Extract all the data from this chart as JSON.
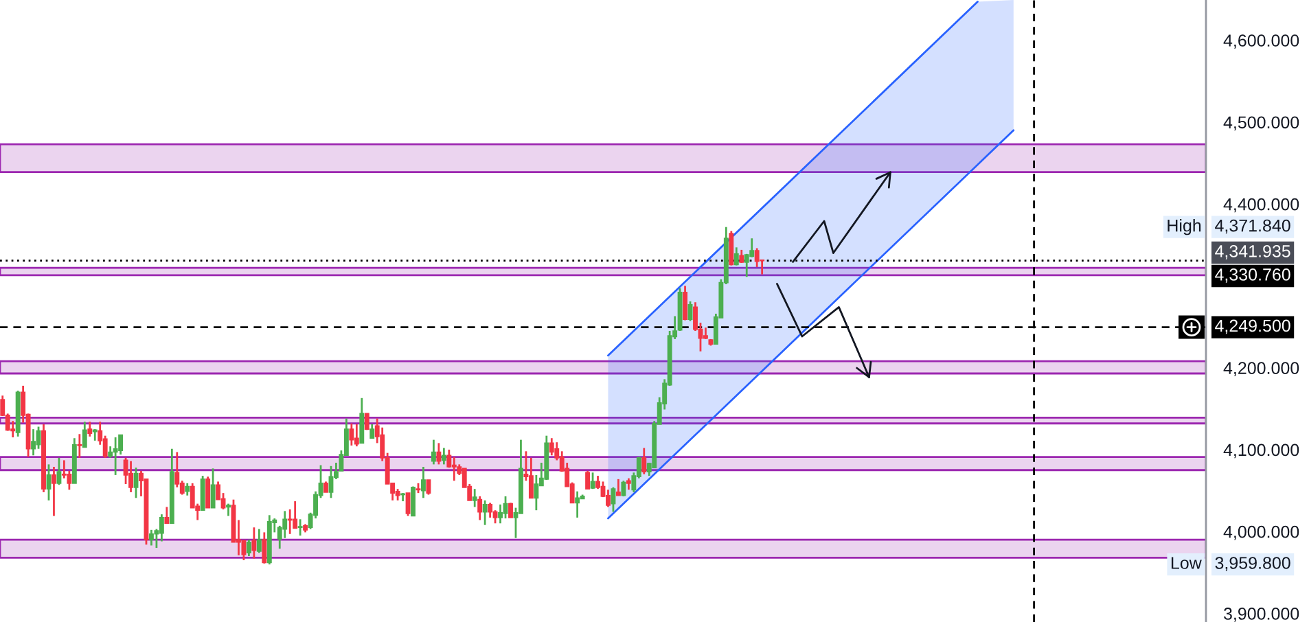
{
  "chart_data": {
    "type": "candlestick",
    "categories": [
      null,
      null,
      null,
      null,
      null,
      null,
      null,
      null,
      null,
      null,
      null,
      null,
      null,
      null,
      null,
      null,
      null,
      null,
      null,
      null,
      null,
      null,
      null,
      null,
      null,
      null,
      null,
      null,
      null,
      null,
      null,
      null,
      null,
      null,
      null,
      null,
      null,
      null,
      null,
      null,
      null,
      null,
      null,
      null,
      null,
      null,
      null,
      null,
      null,
      null,
      null,
      null,
      null,
      null,
      null,
      null,
      null,
      null,
      null,
      null,
      null,
      null,
      null,
      null,
      null,
      null,
      null,
      null,
      null,
      null,
      null,
      null,
      null,
      null,
      null,
      null,
      null,
      null,
      null,
      null,
      null,
      null,
      null,
      null,
      null,
      null,
      null,
      null,
      null,
      null,
      null,
      null,
      null,
      null,
      null,
      null,
      null,
      null,
      null,
      null,
      null,
      null,
      null,
      null,
      null,
      null,
      null,
      null,
      null,
      null,
      null,
      null,
      null,
      null,
      null,
      null,
      null,
      null,
      null,
      null,
      null,
      null,
      null,
      null,
      null,
      null,
      null,
      null,
      null,
      null,
      null,
      null,
      null,
      null,
      null,
      null,
      null,
      null,
      null,
      null,
      null,
      null,
      null,
      null,
      null,
      null,
      null,
      null,
      null,
      null,
      null,
      null,
      null,
      null,
      null,
      null,
      null,
      null,
      null,
      null,
      null,
      null,
      null,
      null,
      null,
      null,
      null,
      null,
      null,
      null,
      null,
      null,
      null,
      null,
      null,
      null,
      null,
      null,
      null,
      null,
      null,
      null,
      null,
      null,
      null,
      null,
      null,
      null,
      null,
      null,
      null,
      null,
      null,
      null,
      null,
      null,
      null,
      null,
      null,
      null,
      null,
      null,
      null,
      null,
      null,
      null,
      null,
      null,
      null,
      null,
      null,
      null,
      null,
      null,
      null,
      null,
      null,
      null,
      null,
      null,
      null,
      null,
      null,
      null,
      null,
      null,
      null,
      null,
      null,
      null,
      null,
      null,
      null,
      null,
      null
    ],
    "ohlc": [
      [
        4161,
        4166,
        4141,
        4142
      ],
      [
        4142,
        4144,
        4123,
        4124
      ],
      [
        4125,
        4135,
        4115,
        4123
      ],
      [
        4121,
        4172,
        4116,
        4170
      ],
      [
        4170,
        4178,
        4133,
        4142
      ],
      [
        4143,
        4144,
        4091,
        4101
      ],
      [
        4101,
        4125,
        4093,
        4110
      ],
      [
        4106,
        4128,
        4101,
        4123
      ],
      [
        4123,
        4131,
        4048,
        4052
      ],
      [
        4052,
        4082,
        4038,
        4069
      ],
      [
        4069,
        4079,
        4019,
        4059
      ],
      [
        4059,
        4090,
        4057,
        4073
      ],
      [
        4070,
        4087,
        4065,
        4069
      ],
      [
        4070,
        4074,
        4051,
        4059
      ],
      [
        4059,
        4114,
        4059,
        4106
      ],
      [
        4106,
        4119,
        4090,
        4105
      ],
      [
        4103,
        4134,
        4103,
        4124
      ],
      [
        4125,
        4134,
        4116,
        4120
      ],
      [
        4122,
        4125,
        4111,
        4124
      ],
      [
        4123,
        4134,
        4106,
        4111
      ],
      [
        4113,
        4117,
        4090,
        4092
      ],
      [
        4092,
        4104,
        4090,
        4097
      ],
      [
        4097,
        4115,
        4069,
        4101
      ],
      [
        4099,
        4118,
        4094,
        4118
      ],
      [
        4087,
        4090,
        4058,
        4069
      ],
      [
        4071,
        4086,
        4048,
        4054
      ],
      [
        4054,
        4078,
        4041,
        4071
      ],
      [
        4071,
        4074,
        4043,
        4062
      ],
      [
        4064,
        4064,
        3984,
        3990
      ],
      [
        3990,
        4002,
        3983,
        3997
      ],
      [
        3997,
        4003,
        3980,
        4001
      ],
      [
        3998,
        4021,
        3988,
        4017
      ],
      [
        4017,
        4030,
        4010,
        4010
      ],
      [
        4010,
        4101,
        4010,
        4073
      ],
      [
        4072,
        4097,
        4054,
        4058
      ],
      [
        4059,
        4062,
        4045,
        4047
      ],
      [
        4049,
        4059,
        4044,
        4055
      ],
      [
        4055,
        4059,
        4029,
        4029
      ],
      [
        4031,
        4034,
        4014,
        4026
      ],
      [
        4026,
        4068,
        4026,
        4064
      ],
      [
        4064,
        4067,
        4029,
        4029
      ],
      [
        4029,
        4077,
        4029,
        4057
      ],
      [
        4057,
        4061,
        4039,
        4039
      ],
      [
        4040,
        4047,
        4027,
        4029
      ],
      [
        4030,
        4034,
        4019,
        4032
      ],
      [
        4032,
        4039,
        3987,
        3987
      ],
      [
        3990,
        4014,
        3971,
        3987
      ],
      [
        3989,
        3989,
        3965,
        3972
      ],
      [
        3974,
        3990,
        3970,
        3987
      ],
      [
        3989,
        4005,
        3967,
        3977
      ],
      [
        3976,
        4003,
        3974,
        3990
      ],
      [
        3990,
        3999,
        3961,
        3962
      ],
      [
        3962,
        4020,
        3959.8,
        4012
      ],
      [
        4011,
        4016,
        3999,
        4014
      ],
      [
        3991,
        4007,
        3979,
        4005
      ],
      [
        4003,
        4025,
        3992,
        4015
      ],
      [
        4015,
        4027,
        3997,
        4014
      ],
      [
        4015,
        4037,
        4004,
        4004
      ],
      [
        4005,
        4015,
        3995,
        4006
      ],
      [
        4007,
        4009,
        3999,
        4002
      ],
      [
        4005,
        4023,
        4003,
        4021
      ],
      [
        4020,
        4049,
        4016,
        4045
      ],
      [
        4044,
        4081,
        4041,
        4059
      ],
      [
        4059,
        4061,
        4048,
        4048
      ],
      [
        4048,
        4080,
        4041,
        4067
      ],
      [
        4066,
        4084,
        4064,
        4073
      ],
      [
        4074,
        4099,
        4074,
        4094
      ],
      [
        4093,
        4138,
        4093,
        4125
      ],
      [
        4125,
        4132,
        4105,
        4112
      ],
      [
        4114,
        4131,
        4104,
        4107
      ],
      [
        4108,
        4163,
        4108,
        4144
      ],
      [
        4144,
        4144,
        4124,
        4125
      ],
      [
        4114,
        4131,
        4114,
        4125
      ],
      [
        4129,
        4138,
        4108,
        4116
      ],
      [
        4118,
        4127,
        4086,
        4090
      ],
      [
        4090,
        4096,
        4058,
        4058
      ],
      [
        4059,
        4059,
        4038,
        4047
      ],
      [
        4049,
        4052,
        4038,
        4044
      ],
      [
        4045,
        4047,
        4037,
        4046
      ],
      [
        4047,
        4047,
        4019,
        4022
      ],
      [
        4019,
        4055,
        4019,
        4054
      ],
      [
        4052,
        4059,
        4047,
        4051
      ],
      [
        4050,
        4079,
        4041,
        4063
      ],
      [
        4063,
        4063,
        4045,
        4047
      ],
      [
        4086,
        4112,
        4082,
        4097
      ],
      [
        4097,
        4108,
        4082,
        4086
      ],
      [
        4087,
        4102,
        4082,
        4093
      ],
      [
        4093,
        4100,
        4078,
        4079
      ],
      [
        4081,
        4091,
        4062,
        4079
      ],
      [
        4079,
        4082,
        4069,
        4071
      ],
      [
        4077,
        4077,
        4054,
        4054
      ],
      [
        4055,
        4058,
        4038,
        4038
      ],
      [
        4038,
        4052,
        4030,
        4042
      ],
      [
        4039,
        4043,
        4014,
        4024
      ],
      [
        4024,
        4038,
        4008,
        4033
      ],
      [
        4033,
        4035,
        4017,
        4024
      ],
      [
        4024,
        4026,
        4010,
        4017
      ],
      [
        4017,
        4033,
        4010,
        4023
      ],
      [
        4022,
        4043,
        4016,
        4034
      ],
      [
        4034,
        4035,
        4017,
        4017
      ],
      [
        4017,
        4029,
        3992,
        4023
      ],
      [
        4022,
        4112,
        4022,
        4077
      ],
      [
        4070,
        4098,
        4062,
        4067
      ],
      [
        4068,
        4090,
        4041,
        4041
      ],
      [
        4041,
        4069,
        4026,
        4058
      ],
      [
        4056,
        4084,
        4056,
        4065
      ],
      [
        4064,
        4117,
        4063,
        4108
      ],
      [
        4108,
        4114,
        4093,
        4097
      ],
      [
        4101,
        4109,
        4087,
        4090
      ],
      [
        4091,
        4098,
        4073,
        4074
      ],
      [
        4077,
        4084,
        4055,
        4055
      ],
      [
        4058,
        4060,
        4035,
        4035
      ],
      [
        4035,
        4049,
        4017,
        4041
      ],
      [
        4040,
        4045,
        4040,
        4043
      ],
      [
        4072,
        4074,
        4052,
        4052
      ],
      [
        4053,
        4072,
        4052,
        4061
      ],
      [
        4061,
        4068,
        4052,
        4054
      ],
      [
        4055,
        4061,
        4042,
        4043
      ],
      [
        4044,
        4051,
        4030,
        4032
      ],
      [
        4034,
        4054,
        4024,
        4052
      ],
      [
        4048,
        4064,
        4044,
        4044
      ],
      [
        4044,
        4062,
        4043,
        4060
      ],
      [
        4062,
        4065,
        4051,
        4059
      ],
      [
        4051,
        4072,
        4048,
        4068
      ],
      [
        4067,
        4091,
        4065,
        4090
      ],
      [
        4090,
        4102,
        4070,
        4073
      ],
      [
        4073,
        4084,
        4068,
        4083
      ],
      [
        4078,
        4135,
        4078,
        4132
      ],
      [
        4131,
        4164,
        4131,
        4157
      ],
      [
        4156,
        4186,
        4149,
        4181
      ],
      [
        4179,
        4245,
        4178,
        4239
      ],
      [
        4238,
        4263,
        4235,
        4245
      ],
      [
        4246,
        4297,
        4245,
        4292
      ],
      [
        4292,
        4300,
        4258,
        4259
      ],
      [
        4259,
        4281,
        4257,
        4277
      ],
      [
        4274,
        4280,
        4245,
        4247
      ],
      [
        4247,
        4255,
        4220,
        4236
      ],
      [
        4239,
        4249,
        4235,
        4236
      ],
      [
        4234,
        4235,
        4227,
        4229
      ],
      [
        4229,
        4266,
        4229,
        4262
      ],
      [
        4261,
        4308,
        4261,
        4304
      ],
      [
        4304,
        4371.84,
        4302,
        4358
      ],
      [
        4364,
        4367,
        4325,
        4326
      ],
      [
        4326,
        4347,
        4325,
        4339
      ],
      [
        4337,
        4344,
        4328,
        4329
      ],
      [
        4329,
        4339,
        4311,
        4338
      ],
      [
        4336,
        4358,
        4335,
        4343
      ],
      [
        4343,
        4346,
        4323,
        4330
      ],
      [
        4331.5,
        4332,
        4314,
        4330.76
      ],
      null,
      null,
      null,
      null,
      null,
      null,
      null,
      null,
      null,
      null,
      null,
      null,
      null,
      null,
      null,
      null,
      null,
      null,
      null,
      null,
      null,
      null,
      null,
      null,
      null,
      null,
      null,
      null,
      null,
      null,
      null,
      null,
      null,
      null,
      null,
      null,
      null,
      null,
      null,
      null,
      null,
      null,
      null,
      null,
      null,
      null,
      null,
      null,
      null,
      null,
      null,
      null,
      null,
      null,
      null,
      null,
      null,
      null,
      null,
      null,
      null,
      null,
      null,
      null,
      null,
      null,
      null,
      null,
      null,
      null,
      null,
      null,
      null,
      null,
      null,
      null,
      null,
      null,
      null,
      null,
      null,
      null,
      null,
      null,
      null,
      null
    ],
    "colors": [
      "#f23645",
      "#f23645",
      "#f23645",
      "#4caf50",
      "#f23645",
      "#f23645",
      "#4caf50",
      "#4caf50",
      "#f23645",
      "#4caf50",
      "#f23645",
      "#4caf50",
      "#f23645",
      "#f23645",
      "#4caf50",
      "#f23645",
      "#4caf50",
      "#f23645",
      "#4caf50",
      "#f23645",
      "#f23645",
      "#4caf50",
      "#4caf50",
      "#4caf50",
      "#f23645",
      "#f23645",
      "#4caf50",
      "#f23645",
      "#f23645",
      "#4caf50",
      "#4caf50",
      "#4caf50",
      "#f23645",
      "#4caf50",
      "#f23645",
      "#f23645",
      "#4caf50",
      "#f23645",
      "#f23645",
      "#4caf50",
      "#f23645",
      "#4caf50",
      "#f23645",
      "#f23645",
      "#4caf50",
      "#f23645",
      "#f23645",
      "#f23645",
      "#4caf50",
      "#f23645",
      "#4caf50",
      "#f23645",
      "#4caf50",
      "#4caf50",
      "#4caf50",
      "#4caf50",
      "#f23645",
      "#f23645",
      "#4caf50",
      "#f23645",
      "#4caf50",
      "#4caf50",
      "#4caf50",
      "#f23645",
      "#4caf50",
      "#4caf50",
      "#4caf50",
      "#4caf50",
      "#f23645",
      "#f23645",
      "#4caf50",
      "#f23645",
      "#4caf50",
      "#f23645",
      "#f23645",
      "#f23645",
      "#f23645",
      "#f23645",
      "#4caf50",
      "#f23645",
      "#4caf50",
      "#f23645",
      "#4caf50",
      "#f23645",
      "#4caf50",
      "#f23645",
      "#4caf50",
      "#f23645",
      "#f23645",
      "#f23645",
      "#f23645",
      "#f23645",
      "#4caf50",
      "#f23645",
      "#4caf50",
      "#f23645",
      "#f23645",
      "#4caf50",
      "#4caf50",
      "#f23645",
      "#4caf50",
      "#4caf50",
      "#f23645",
      "#f23645",
      "#4caf50",
      "#4caf50",
      "#4caf50",
      "#f23645",
      "#f23645",
      "#f23645",
      "#f23645",
      "#f23645",
      "#4caf50",
      "#4caf50",
      "#f23645",
      "#4caf50",
      "#f23645",
      "#f23645",
      "#f23645",
      "#4caf50",
      "#f23645",
      "#4caf50",
      "#f23645",
      "#4caf50",
      "#4caf50",
      "#f23645",
      "#4caf50",
      "#4caf50",
      "#4caf50",
      "#4caf50",
      "#4caf50",
      "#4caf50",
      "#4caf50",
      "#f23645",
      "#4caf50",
      "#f23645",
      "#f23645",
      "#f23645",
      "#f23645",
      "#4caf50",
      "#4caf50",
      "#4caf50",
      "#f23645",
      "#4caf50",
      "#f23645",
      "#4caf50",
      "#4caf50",
      "#f23645",
      "#f23645",
      null,
      null,
      null,
      null,
      null,
      null,
      null,
      null,
      null,
      null,
      null,
      null,
      null,
      null,
      null,
      null,
      null,
      null,
      null,
      null,
      null,
      null,
      null,
      null,
      null,
      null,
      null,
      null,
      null,
      null,
      null,
      null,
      null,
      null,
      null,
      null,
      null,
      null,
      null,
      null,
      null,
      null,
      null,
      null,
      null,
      null,
      null,
      null,
      null,
      null,
      null,
      null,
      null,
      null,
      null,
      null,
      null,
      null,
      null,
      null,
      null,
      null,
      null,
      null,
      null,
      null,
      null,
      null,
      null,
      null,
      null,
      null,
      null,
      null,
      null,
      null,
      null,
      null,
      null,
      null,
      null,
      null,
      null,
      null,
      null,
      null
    ],
    "series": [
      {
        "type": "line",
        "color": "#2962ff",
        "values": [
          null,
          null,
          null,
          null,
          null,
          null,
          null,
          null,
          null,
          null,
          null,
          null,
          null,
          null,
          null,
          null,
          null,
          null,
          null,
          null,
          null,
          null,
          null,
          null,
          null,
          null,
          null,
          null,
          null,
          null,
          null,
          null,
          null,
          null,
          null,
          null,
          null,
          null,
          null,
          null,
          null,
          null,
          null,
          null,
          null,
          null,
          null,
          null,
          null,
          null,
          null,
          null,
          null,
          null,
          null,
          null,
          null,
          null,
          null,
          null,
          null,
          null,
          null,
          null,
          null,
          null,
          null,
          null,
          null,
          null,
          null,
          null,
          null,
          null,
          null,
          null,
          null,
          null,
          null,
          null,
          null,
          null,
          null,
          null,
          null,
          null,
          null,
          null,
          null,
          null,
          null,
          null,
          null,
          null,
          null,
          null,
          null,
          null,
          null,
          null,
          null,
          null,
          null,
          null,
          null,
          null,
          null,
          null,
          null,
          null,
          null,
          null,
          null,
          null,
          null,
          null,
          null,
          null,
          4215,
          null,
          null,
          null,
          null,
          null,
          null,
          null,
          null,
          null,
          null,
          null,
          null,
          null,
          null,
          null,
          null,
          null,
          null,
          null,
          null,
          null,
          null,
          null,
          null,
          null,
          null,
          null,
          null,
          null,
          null,
          null,
          null,
          null,
          null,
          null,
          null,
          null,
          null,
          null,
          null,
          null,
          null,
          null,
          null,
          null,
          null,
          null,
          null,
          null,
          null,
          null,
          null,
          null,
          null,
          null,
          null,
          null,
          null,
          null,
          null,
          null,
          null,
          null,
          null,
          null,
          null,
          null,
          null,
          null,
          null,
          null,
          4647,
          null,
          null,
          null,
          null,
          null,
          null,
          null,
          null,
          null,
          null,
          null,
          null,
          null,
          null,
          null,
          null,
          null,
          null,
          null,
          null,
          null,
          null,
          null,
          null,
          null,
          null,
          null,
          null,
          null,
          null,
          null,
          null,
          null,
          null,
          null,
          null,
          null,
          null,
          null,
          null,
          null,
          null,
          null,
          null
        ],
        "lower": [
          null,
          null,
          null,
          null,
          null,
          null,
          null,
          null,
          null,
          null,
          null,
          null,
          null,
          null,
          null,
          null,
          null,
          null,
          null,
          null,
          null,
          null,
          null,
          null,
          null,
          null,
          null,
          null,
          null,
          null,
          null,
          null,
          null,
          null,
          null,
          null,
          null,
          null,
          null,
          null,
          null,
          null,
          null,
          null,
          null,
          null,
          null,
          null,
          null,
          null,
          null,
          null,
          null,
          null,
          null,
          null,
          null,
          null,
          null,
          null,
          null,
          null,
          null,
          null,
          null,
          null,
          null,
          null,
          null,
          null,
          null,
          null,
          null,
          null,
          null,
          null,
          null,
          null,
          null,
          null,
          null,
          null,
          null,
          null,
          null,
          null,
          null,
          null,
          null,
          null,
          null,
          null,
          null,
          null,
          null,
          null,
          null,
          null,
          null,
          null,
          null,
          null,
          null,
          null,
          null,
          null,
          null,
          null,
          null,
          null,
          null,
          null,
          null,
          null,
          null,
          null,
          null,
          null,
          4016,
          null,
          null,
          null,
          null,
          null,
          null,
          null,
          null,
          null,
          null,
          null,
          null,
          null,
          null,
          null,
          null,
          null,
          null,
          null,
          null,
          null,
          null,
          null,
          null,
          null,
          null,
          null,
          null,
          null,
          null,
          null,
          null,
          null,
          null,
          null,
          null,
          null,
          null,
          null,
          null,
          null,
          null,
          null,
          null,
          null,
          null,
          null,
          null,
          null,
          null,
          null,
          null,
          null,
          null,
          null,
          null,
          null,
          null,
          null,
          null,
          null,
          null,
          null,
          null,
          null,
          null,
          null,
          null,
          null,
          null,
          null,
          4450,
          null,
          null,
          null,
          null,
          null,
          null,
          4490,
          null,
          null,
          null,
          null,
          null,
          null,
          null,
          null,
          null,
          null,
          null,
          null,
          null,
          null,
          null,
          null,
          null,
          null,
          null,
          null,
          null,
          null,
          null,
          null,
          null,
          null,
          null,
          null,
          null,
          null,
          null,
          null,
          null,
          null,
          null,
          null,
          null
        ],
        "upper": [
          null,
          null,
          null,
          null,
          null,
          null,
          null,
          null,
          null,
          null,
          null,
          null,
          null,
          null,
          null,
          null,
          null,
          null,
          null,
          null,
          null,
          null,
          null,
          null,
          null,
          null,
          null,
          null,
          null,
          null,
          null,
          null,
          null,
          null,
          null,
          null,
          null,
          null,
          null,
          null,
          null,
          null,
          null,
          null,
          null,
          null,
          null,
          null,
          null,
          null,
          null,
          null,
          null,
          null,
          null,
          null,
          null,
          null,
          null,
          null,
          null,
          null,
          null,
          null,
          null,
          null,
          null,
          null,
          null,
          null,
          null,
          null,
          null,
          null,
          null,
          null,
          null,
          null,
          null,
          null,
          null,
          null,
          null,
          null,
          null,
          null,
          null,
          null,
          null,
          null,
          null,
          null,
          null,
          null,
          null,
          null,
          null,
          null,
          null,
          null,
          null,
          null,
          null,
          null,
          null,
          null,
          null,
          null,
          null,
          null,
          null,
          null,
          null,
          null,
          null,
          null,
          null,
          null,
          4215,
          null,
          null,
          null,
          null,
          null,
          null,
          null,
          null,
          null,
          null,
          null,
          null,
          null,
          null,
          null,
          null,
          null,
          null,
          null,
          null,
          null,
          null,
          null,
          null,
          null,
          null,
          null,
          null,
          null,
          null,
          null,
          null,
          null,
          null,
          null,
          null,
          null,
          null,
          null,
          null,
          null,
          null,
          null,
          null,
          null,
          null,
          null,
          null,
          null,
          null,
          null,
          null,
          null,
          null,
          null,
          null,
          null,
          null,
          null,
          null,
          null,
          null,
          null,
          null,
          null,
          null,
          null,
          null,
          null,
          null,
          null,
          4647,
          null,
          null,
          null,
          null,
          null,
          null,
          4649,
          null,
          null,
          null,
          null,
          null,
          null,
          null,
          null,
          null,
          null,
          null,
          null,
          null,
          null,
          null,
          null,
          null,
          null,
          null,
          null,
          null,
          null,
          null,
          null,
          null,
          null,
          null,
          null,
          null,
          null,
          null,
          null,
          null,
          null,
          null,
          null,
          null
        ]
      },
      {
        "type": "line",
        "color": "#2962ff",
        "values": [
          null,
          null,
          null,
          null,
          null,
          null,
          null,
          null,
          null,
          null,
          null,
          null,
          null,
          null,
          null,
          null,
          null,
          null,
          null,
          null,
          null,
          null,
          null,
          null,
          null,
          null,
          null,
          null,
          null,
          null,
          null,
          null,
          null,
          null,
          null,
          null,
          null,
          null,
          null,
          null,
          null,
          null,
          null,
          null,
          null,
          null,
          null,
          null,
          null,
          null,
          null,
          null,
          null,
          null,
          null,
          null,
          null,
          null,
          null,
          null,
          null,
          null,
          null,
          null,
          null,
          null,
          null,
          null,
          null,
          null,
          null,
          null,
          null,
          null,
          null,
          null,
          null,
          null,
          null,
          null,
          null,
          null,
          null,
          null,
          null,
          null,
          null,
          null,
          null,
          null,
          null,
          null,
          null,
          null,
          null,
          null,
          null,
          null,
          null,
          null,
          null,
          null,
          null,
          null,
          null,
          null,
          null,
          null,
          null,
          null,
          null,
          null,
          null,
          null,
          null,
          null,
          null,
          null,
          4016,
          null,
          null,
          null,
          null,
          null,
          null,
          null,
          null,
          null,
          null,
          null,
          null,
          null,
          null,
          null,
          null,
          null,
          null,
          null,
          null,
          null,
          null,
          null,
          null,
          null,
          null,
          null,
          null,
          null,
          null,
          null,
          null,
          null,
          null,
          null,
          null,
          null,
          null,
          null,
          null,
          null,
          null,
          null,
          null,
          null,
          null,
          null,
          null,
          null,
          null,
          null,
          null,
          null,
          null,
          null,
          null,
          null,
          null,
          null,
          null,
          null,
          null,
          null,
          null,
          null,
          null,
          null,
          null,
          null,
          null,
          null,
          null,
          null,
          null,
          null,
          null,
          null,
          null,
          4490,
          null,
          null,
          null,
          null,
          null,
          null,
          null,
          null,
          null,
          null,
          null,
          null,
          null,
          null,
          null,
          null,
          null,
          null,
          null,
          null,
          null,
          null,
          null,
          null,
          null,
          null,
          null,
          null,
          null,
          null,
          null,
          null,
          null,
          null,
          null,
          null,
          null
        ]
      }
    ],
    "bands": [
      {
        "axis": "y",
        "from": 4439,
        "to": 4473,
        "color": "#9c27b0"
      },
      {
        "axis": "y",
        "from": 4313,
        "to": 4322,
        "color": "#9c27b0"
      },
      {
        "axis": "y",
        "from": 4193,
        "to": 4208,
        "color": "#9c27b0"
      },
      {
        "axis": "y",
        "from": 4132,
        "to": 4139,
        "color": "#9c27b0"
      },
      {
        "axis": "y",
        "from": 4075,
        "to": 4091,
        "color": "#9c27b0"
      },
      {
        "axis": "y",
        "from": 3968,
        "to": 3990,
        "color": "#9c27b0"
      }
    ],
    "ref_lines": [
      {
        "axis": "y",
        "value": 4330.76,
        "label": "4,330.760",
        "color": "#000000",
        "line_style": "dotted"
      },
      {
        "axis": "y",
        "value": 4249.5,
        "label": "4,249.500",
        "color": "#000000",
        "line_style": "dashed"
      }
    ],
    "annotations": [
      {
        "text": "High",
        "y": 4371.84
      },
      "4,371.840",
      "4,341.935",
      {
        "text": "Low",
        "y": 3959.8
      },
      "3,959.800"
    ],
    "ylim": [
      3889.5,
      4649.1
    ],
    "yticks": [
      {
        "value": 3900,
        "label": "3,900.000"
      },
      {
        "value": 4000,
        "label": "4,000.000"
      },
      {
        "value": 4100,
        "label": "4,100.000"
      },
      {
        "value": 4200,
        "label": "4,200.000"
      },
      {
        "value": 4400,
        "label": "4,400.000"
      },
      {
        "value": 4500,
        "label": "4,500.000"
      },
      {
        "value": 4600,
        "label": "4,600.000"
      }
    ],
    "tick_labels": "y"
  }
}
